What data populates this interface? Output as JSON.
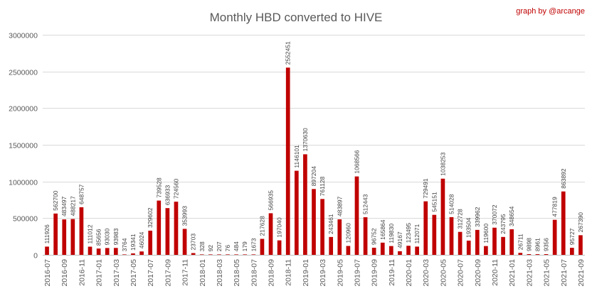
{
  "chart_data": {
    "type": "bar",
    "title": "Monthly HBD converted to  HIVE",
    "credit": "graph by @arcange",
    "bar_color": "#c00000",
    "ylim": [
      0,
      3000000
    ],
    "yticks": [
      0,
      500000,
      1000000,
      1500000,
      2000000,
      2500000,
      3000000
    ],
    "grid": true,
    "legend": "none",
    "categories": [
      "2016-07",
      "2016-08",
      "2016-09",
      "2016-10",
      "2016-11",
      "2016-12",
      "2017-01",
      "2017-02",
      "2017-03",
      "2017-04",
      "2017-05",
      "2017-06",
      "2017-07",
      "2017-08",
      "2017-09",
      "2017-10",
      "2017-11",
      "2017-12",
      "2018-01",
      "2018-02",
      "2018-03",
      "2018-04",
      "2018-05",
      "2018-06",
      "2018-07",
      "2018-08",
      "2018-09",
      "2018-10",
      "2018-11",
      "2018-12",
      "2019-01",
      "2019-02",
      "2019-03",
      "2019-04",
      "2019-05",
      "2019-06",
      "2019-07",
      "2019-08",
      "2019-09",
      "2019-10",
      "2019-11",
      "2019-12",
      "2020-01",
      "2020-02",
      "2020-03",
      "2020-04",
      "2020-05",
      "2020-06",
      "2020-07",
      "2020-08",
      "2020-09",
      "2020-10",
      "2020-11",
      "2020-12",
      "2021-01",
      "2021-02",
      "2021-03",
      "2021-04",
      "2021-05",
      "2021-06",
      "2021-07",
      "2021-08",
      "2021-09"
    ],
    "values": [
      111926,
      562700,
      483497,
      488217,
      648757,
      111012,
      85656,
      93030,
      93983,
      3764,
      19341,
      46024,
      329602,
      739528,
      636933,
      724560,
      353993,
      23703,
      328,
      92,
      207,
      76,
      484,
      179,
      1673,
      217628,
      566935,
      197040,
      2552451,
      1146101,
      1370630,
      897204,
      761128,
      243461,
      483897,
      120960,
      1068566,
      512443,
      96752,
      165864,
      119830,
      49167,
      123495,
      112071,
      729491,
      545151,
      1038253,
      514028,
      312728,
      193504,
      339962,
      119600,
      370072,
      243795,
      348654,
      26711,
      9898,
      8961,
      9356,
      477819,
      863892,
      95727,
      267390
    ],
    "labels": [
      "111926",
      "562700",
      "483497",
      "488217",
      "648757",
      "111012",
      "85656",
      "93030",
      "93983",
      "3764",
      "19341",
      "46024",
      "329602",
      "739528",
      "636933",
      "724560",
      "353993",
      "23703",
      "328",
      "92",
      "207",
      "76",
      "484",
      "179",
      "1673",
      "217628",
      "566935",
      "197040",
      "2552451",
      "1146101",
      "1370630",
      "897204",
      "761128",
      "243461",
      "483897",
      "120960",
      "1068566",
      "512443",
      "96752",
      "165864",
      "119830",
      "49167",
      "123495",
      "112071",
      "729491",
      "545151",
      "1038253",
      "514028",
      "312728",
      "193504",
      "339962",
      "119600",
      "370072",
      "243795",
      "348654",
      "26711",
      "9898",
      "8961",
      "9356",
      "477819",
      "863892",
      "95727",
      "267390"
    ],
    "xtick_every": 2
  }
}
